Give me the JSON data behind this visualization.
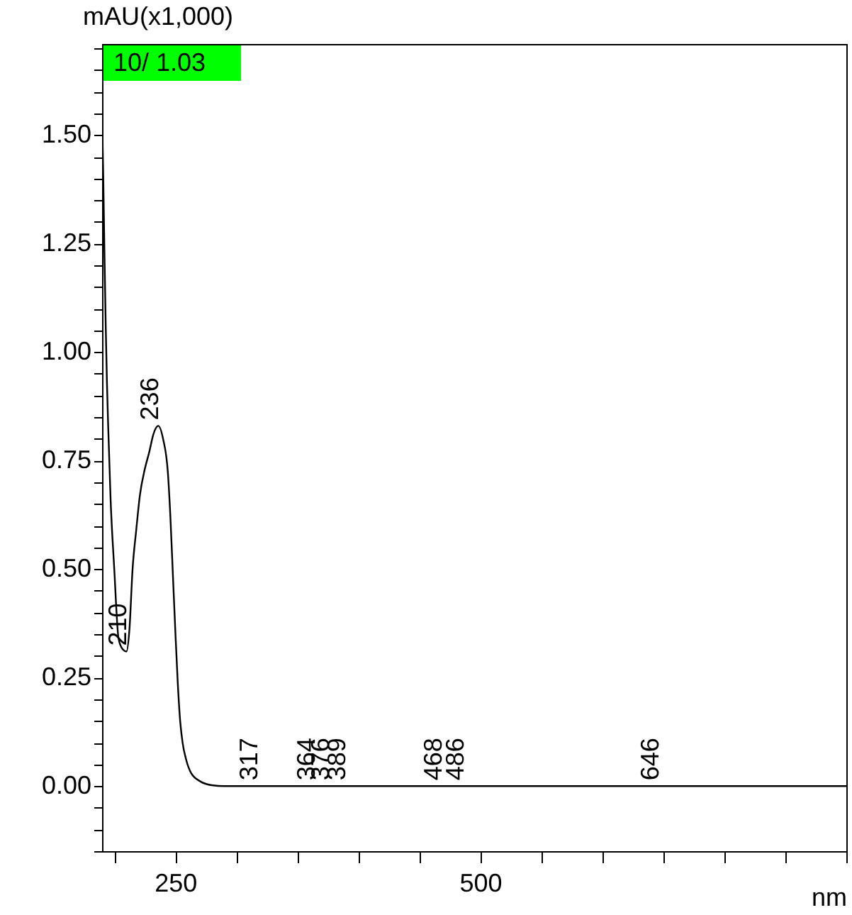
{
  "chart_data": {
    "type": "line",
    "xlabel": "nm",
    "ylabel": "mAU(x1,000)",
    "x": [
      190,
      191,
      192,
      193,
      194,
      195,
      197,
      200,
      203.5,
      207,
      210,
      212.4,
      215,
      218,
      221,
      225,
      228.7,
      232,
      236,
      240,
      244,
      246,
      248,
      250,
      252,
      254,
      256,
      259,
      263,
      271,
      280,
      290,
      400,
      500,
      600,
      700,
      800
    ],
    "series": [
      {
        "color": "#000000",
        "values": [
          1.55,
          1.4,
          1.22,
          1.06,
          0.93,
          0.83,
          0.66,
          0.5,
          0.34,
          0.315,
          0.31,
          0.36,
          0.5,
          0.59,
          0.67,
          0.73,
          0.77,
          0.81,
          0.83,
          0.8,
          0.72,
          0.62,
          0.49,
          0.36,
          0.24,
          0.15,
          0.1,
          0.06,
          0.03,
          0.01,
          0.002,
          0,
          0,
          0,
          0,
          0,
          0
        ]
      }
    ],
    "xlim": [
      190,
      800
    ],
    "xticks": [
      {
        "value": 200,
        "label": null
      },
      250,
      {
        "value": 300,
        "label": null
      },
      {
        "value": 350,
        "label": null
      },
      {
        "value": 400,
        "label": null
      },
      {
        "value": 450,
        "label": null
      },
      500,
      {
        "value": 550,
        "label": null
      },
      {
        "value": 600,
        "label": null
      },
      {
        "value": 650,
        "label": null
      },
      {
        "value": 700,
        "label": null
      },
      {
        "value": 750,
        "label": null
      },
      {
        "value": 800,
        "label": null
      }
    ],
    "ylim": [
      -0.15,
      1.71
    ],
    "yticks": [
      {
        "value": -0.15,
        "label": null
      },
      {
        "value": -0.1,
        "label": null
      },
      {
        "value": -0.05,
        "label": null
      },
      {
        "value": 0,
        "label": "0.00"
      },
      {
        "value": 0.05,
        "label": null
      },
      {
        "value": 0.1,
        "label": null
      },
      {
        "value": 0.15,
        "label": null
      },
      {
        "value": 0.2,
        "label": null
      },
      {
        "value": 0.25,
        "label": "0.25"
      },
      {
        "value": 0.3,
        "label": null
      },
      {
        "value": 0.35,
        "label": null
      },
      {
        "value": 0.4,
        "label": null
      },
      {
        "value": 0.45,
        "label": null
      },
      {
        "value": 0.5,
        "label": "0.50"
      },
      {
        "value": 0.55,
        "label": null
      },
      {
        "value": 0.6,
        "label": null
      },
      {
        "value": 0.65,
        "label": null
      },
      {
        "value": 0.7,
        "label": null
      },
      {
        "value": 0.75,
        "label": "0.75"
      },
      {
        "value": 0.8,
        "label": null
      },
      {
        "value": 0.85,
        "label": null
      },
      {
        "value": 0.9,
        "label": null
      },
      {
        "value": 0.95,
        "label": null
      },
      {
        "value": 1.0,
        "label": "1.00"
      },
      {
        "value": 1.05,
        "label": null
      },
      {
        "value": 1.1,
        "label": null
      },
      {
        "value": 1.15,
        "label": null
      },
      {
        "value": 1.2,
        "label": null
      },
      {
        "value": 1.25,
        "label": "1.25"
      },
      {
        "value": 1.3,
        "label": null
      },
      {
        "value": 1.35,
        "label": null
      },
      {
        "value": 1.4,
        "label": null
      },
      {
        "value": 1.45,
        "label": null
      },
      {
        "value": 1.5,
        "label": "1.50"
      },
      {
        "value": 1.55,
        "label": null
      },
      {
        "value": 1.6,
        "label": null
      },
      {
        "value": 1.65,
        "label": null
      },
      {
        "value": 1.7,
        "label": null
      }
    ],
    "grid": false,
    "marker": "none",
    "line_style": "solid",
    "annotations": [
      "10/ 1.03",
      {
        "text": "210",
        "x": 210,
        "y": 0.31
      },
      {
        "text": "236",
        "x": 236,
        "y": 0.83
      },
      {
        "text": "317",
        "x": 317,
        "y": 0
      },
      {
        "text": "364",
        "x": 364,
        "y": 0
      },
      {
        "text": "376",
        "x": 376,
        "y": 0
      },
      {
        "text": "389",
        "x": 389,
        "y": 0
      },
      {
        "text": "468",
        "x": 468,
        "y": 0
      },
      {
        "text": "486",
        "x": 486,
        "y": 0
      },
      {
        "text": "646",
        "x": 646,
        "y": 0
      }
    ]
  }
}
